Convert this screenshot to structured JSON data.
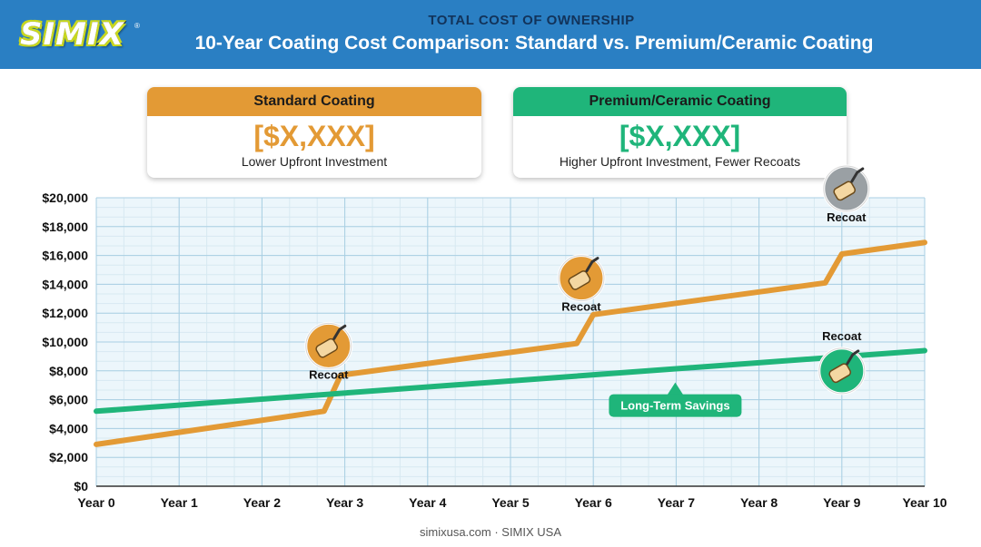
{
  "header": {
    "logo_text": "SIMIX",
    "logo_mark": "®",
    "kicker": "TOTAL COST OF OWNERSHIP",
    "title": "10-Year Coating Cost Comparison: Standard vs. Premium/Ceramic Coating"
  },
  "cards": {
    "standard": {
      "title": "Standard Coating",
      "value": "[$X,XXX]",
      "subtitle": "Lower Upfront Investment",
      "color": "#e39a35"
    },
    "premium": {
      "title": "Premium/Ceramic Coating",
      "value": "[$X,XXX]",
      "subtitle": "Higher Upfront Investment, Fewer Recoats",
      "color": "#1fb57a"
    }
  },
  "chart_data": {
    "type": "line",
    "title": "",
    "xlabel": "",
    "ylabel": "",
    "categories": [
      "Year 0",
      "Year 1",
      "Year 2",
      "Year 3",
      "Year 4",
      "Year 5",
      "Year 6",
      "Year 7",
      "Year 8",
      "Year 9",
      "Year 10"
    ],
    "ylim": [
      0,
      20000
    ],
    "y_ticks": [
      "$0",
      "$2,000",
      "$4,000",
      "$6,000",
      "$8,000",
      "$10,000",
      "$12,000",
      "$14,000",
      "$16,000",
      "$18,000",
      "$20,000"
    ],
    "grid": true,
    "series": [
      {
        "color": "#e39a35",
        "points": [
          [
            0,
            2900
          ],
          [
            2.75,
            5200
          ],
          [
            2.95,
            7700
          ],
          [
            5.8,
            9900
          ],
          [
            6.0,
            11900
          ],
          [
            8.8,
            14100
          ],
          [
            9.0,
            16100
          ],
          [
            10,
            16900
          ]
        ]
      },
      {
        "color": "#1fb57a",
        "points": [
          [
            0,
            5200
          ],
          [
            10,
            9400
          ]
        ]
      }
    ],
    "annotations": [
      {
        "label": "Recoat",
        "x": 2.75,
        "y": 5200,
        "icon": "paint-roller-icon",
        "color": "#e39a35",
        "placement": "above"
      },
      {
        "label": "Recoat",
        "x": 5.8,
        "y": 9900,
        "icon": "paint-roller-icon",
        "color": "#e39a35",
        "placement": "above"
      },
      {
        "label": "Recoat",
        "x": 9.0,
        "y": 16100,
        "icon": "paint-roller-icon",
        "color": "#9aa0a4",
        "placement": "above"
      },
      {
        "label": "Recoat",
        "x": 9.0,
        "y": 9000,
        "icon": "paint-roller-icon",
        "color": "#1fb57a",
        "placement": "below"
      }
    ],
    "callout": {
      "label": "Long-Term Savings",
      "x": 7.0,
      "color": "#1fb57a"
    }
  },
  "footer": "simixusa.com · SIMIX USA"
}
